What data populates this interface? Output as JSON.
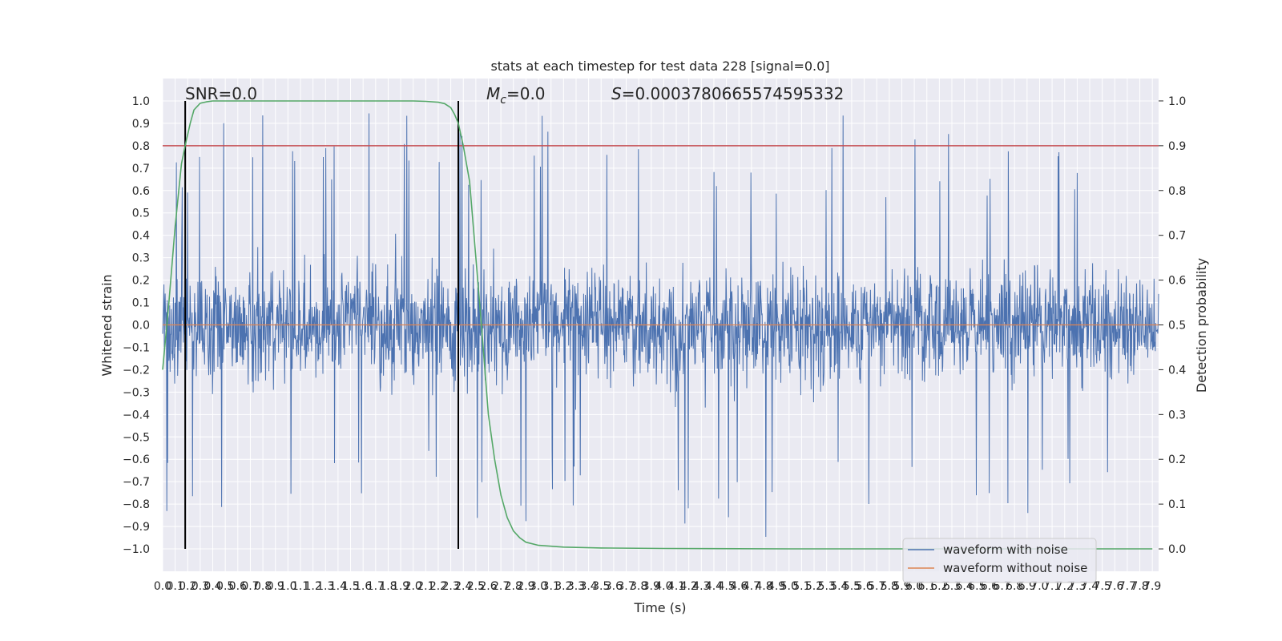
{
  "chart_data": {
    "type": "line",
    "title": "stats at each timestep for test data 228 [signal=0.0]",
    "xlabel": "Time (s)",
    "ylabel_left": "Whitened strain",
    "ylabel_right": "Detection probability",
    "annotations": {
      "snr": "SNR=0.0",
      "mc_symbol": "M",
      "mc_sub": "c",
      "mc_value": "=0.0",
      "s_symbol": "S",
      "s_value": "=0.0003780665574595332"
    },
    "x_ticks": [
      "0.0",
      "0.1",
      "0.2",
      "0.3",
      "0.4",
      "0.5",
      "0.6",
      "0.7",
      "0.8",
      "0.9",
      "1.0",
      "1.1",
      "1.2",
      "1.3",
      "1.4",
      "1.5",
      "1.6",
      "1.7",
      "1.8",
      "1.9",
      "2.0",
      "2.1",
      "2.2",
      "2.3",
      "2.4",
      "2.5",
      "2.6",
      "2.7",
      "2.8",
      "2.9",
      "3.0",
      "3.1",
      "3.2",
      "3.3",
      "3.4",
      "3.5",
      "3.6",
      "3.7",
      "3.8",
      "3.9",
      "4.0",
      "4.1",
      "4.2",
      "4.3",
      "4.4",
      "4.5",
      "4.6",
      "4.7",
      "4.8",
      "4.9",
      "5.0",
      "5.1",
      "5.2",
      "5.3",
      "5.4",
      "5.5",
      "5.6",
      "5.7",
      "5.8",
      "5.9",
      "6.0",
      "6.1",
      "6.2",
      "6.3",
      "6.4",
      "6.5",
      "6.6",
      "6.7",
      "6.8",
      "6.9",
      "7.0",
      "7.1",
      "7.2",
      "7.3",
      "7.4",
      "7.5",
      "7.6",
      "7.7",
      "7.8",
      "7.9"
    ],
    "y_left_ticks": [
      "−1.0",
      "−0.9",
      "−0.8",
      "−0.7",
      "−0.6",
      "−0.5",
      "−0.4",
      "−0.3",
      "−0.2",
      "−0.1",
      "0.0",
      "0.1",
      "0.2",
      "0.3",
      "0.4",
      "0.5",
      "0.6",
      "0.7",
      "0.8",
      "0.9",
      "1.0"
    ],
    "y_right_ticks": [
      "0.0",
      "0.1",
      "0.2",
      "0.3",
      "0.4",
      "0.5",
      "0.6",
      "0.7",
      "0.8",
      "0.9",
      "1.0"
    ],
    "xlim": [
      0.0,
      7.95
    ],
    "ylim_left": [
      -1.1,
      1.1
    ],
    "ylim_right": [
      -0.05,
      1.05
    ],
    "threshold_line": {
      "axis": "right",
      "y": 0.9,
      "color": "#c44e52"
    },
    "vertical_markers": [
      0.18,
      2.36
    ],
    "grid": true,
    "legend": {
      "placement": "lower right",
      "entries": [
        "waveform with noise",
        "waveform without noise"
      ]
    },
    "series": [
      {
        "name": "waveform with noise",
        "axis": "left",
        "color": "#4c72b0",
        "note": "dense whitened-strain noise, roughly within [-1.0, 1.0]",
        "y_range": [
          -1.0,
          1.0
        ]
      },
      {
        "name": "waveform without noise",
        "axis": "left",
        "color": "#dd8452",
        "x": [
          0.0,
          7.95
        ],
        "y": [
          0.0,
          0.0
        ]
      },
      {
        "axis": "right",
        "color": "#55a868",
        "x": [
          0.0,
          0.05,
          0.1,
          0.15,
          0.18,
          0.22,
          0.25,
          0.3,
          0.35,
          0.4,
          0.5,
          0.7,
          1.0,
          1.5,
          2.0,
          2.1,
          2.2,
          2.25,
          2.3,
          2.33,
          2.36,
          2.4,
          2.45,
          2.5,
          2.55,
          2.6,
          2.65,
          2.7,
          2.75,
          2.8,
          2.85,
          2.9,
          3.0,
          3.2,
          3.5,
          4.0,
          5.0,
          6.0,
          7.0,
          7.9
        ],
        "y": [
          0.4,
          0.55,
          0.72,
          0.86,
          0.9,
          0.95,
          0.98,
          0.995,
          0.998,
          1.0,
          1.0,
          1.0,
          1.0,
          1.0,
          1.0,
          0.999,
          0.997,
          0.994,
          0.985,
          0.97,
          0.95,
          0.9,
          0.82,
          0.65,
          0.48,
          0.3,
          0.2,
          0.12,
          0.07,
          0.04,
          0.025,
          0.015,
          0.008,
          0.004,
          0.002,
          0.001,
          0.0,
          0.0,
          0.0,
          0.0
        ]
      }
    ]
  }
}
